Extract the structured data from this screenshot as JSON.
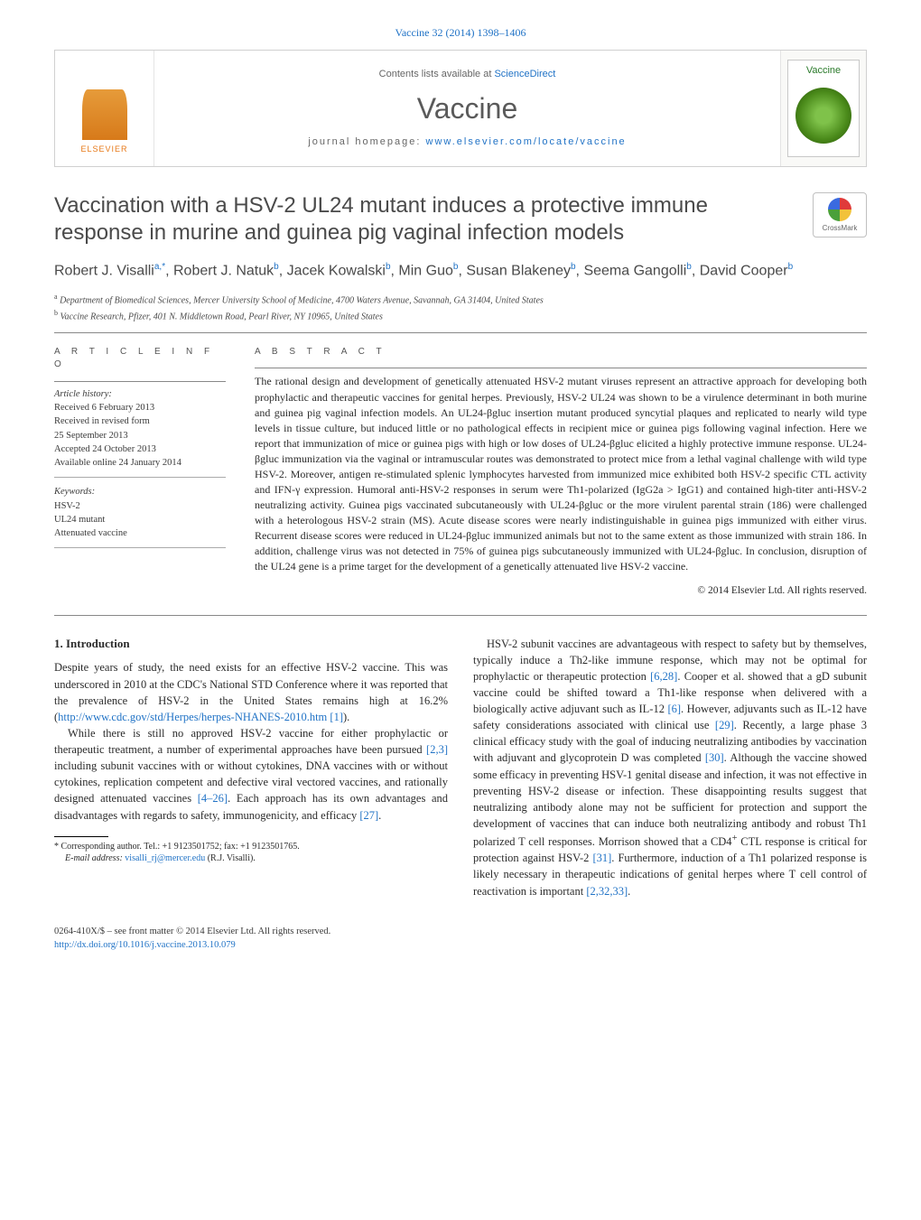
{
  "top_ref": "Vaccine 32 (2014) 1398–1406",
  "banner": {
    "contents_label": "Contents lists available at ",
    "contents_link": "ScienceDirect",
    "journal_name": "Vaccine",
    "homepage_label": "journal homepage: ",
    "homepage_url": "www.elsevier.com/locate/vaccine",
    "publisher_label": "ELSEVIER",
    "cover_title": "Vaccine"
  },
  "crossmark_label": "CrossMark",
  "title": "Vaccination with a HSV-2 UL24 mutant induces a protective immune response in murine and guinea pig vaginal infection models",
  "authors_html": "Robert J. Visalli<sup>a,*</sup>, Robert J. Natuk<sup>b</sup>, Jacek Kowalski<sup>b</sup>, Min Guo<sup>b</sup>, Susan Blakeney<sup>b</sup>, Seema Gangolli<sup>b</sup>, David Cooper<sup>b</sup>",
  "affiliations": {
    "a": "Department of Biomedical Sciences, Mercer University School of Medicine, 4700 Waters Avenue, Savannah, GA 31404, United States",
    "b": "Vaccine Research, Pfizer, 401 N. Middletown Road, Pearl River, NY 10965, United States"
  },
  "article_info": {
    "head": "A R T I C L E   I N F O",
    "history_label": "Article history:",
    "received": "Received 6 February 2013",
    "revised1": "Received in revised form",
    "revised2": "25 September 2013",
    "accepted": "Accepted 24 October 2013",
    "online": "Available online 24 January 2014",
    "keywords_label": "Keywords:",
    "kw1": "HSV-2",
    "kw2": "UL24 mutant",
    "kw3": "Attenuated vaccine"
  },
  "abstract": {
    "head": "A B S T R A C T",
    "text": "The rational design and development of genetically attenuated HSV-2 mutant viruses represent an attractive approach for developing both prophylactic and therapeutic vaccines for genital herpes. Previously, HSV-2 UL24 was shown to be a virulence determinant in both murine and guinea pig vaginal infection models. An UL24-βgluc insertion mutant produced syncytial plaques and replicated to nearly wild type levels in tissue culture, but induced little or no pathological effects in recipient mice or guinea pigs following vaginal infection. Here we report that immunization of mice or guinea pigs with high or low doses of UL24-βgluc elicited a highly protective immune response. UL24-βgluc immunization via the vaginal or intramuscular routes was demonstrated to protect mice from a lethal vaginal challenge with wild type HSV-2. Moreover, antigen re-stimulated splenic lymphocytes harvested from immunized mice exhibited both HSV-2 specific CTL activity and IFN-γ expression. Humoral anti-HSV-2 responses in serum were Th1-polarized (IgG2a > IgG1) and contained high-titer anti-HSV-2 neutralizing activity. Guinea pigs vaccinated subcutaneously with UL24-βgluc or the more virulent parental strain (186) were challenged with a heterologous HSV-2 strain (MS). Acute disease scores were nearly indistinguishable in guinea pigs immunized with either virus. Recurrent disease scores were reduced in UL24-βgluc immunized animals but not to the same extent as those immunized with strain 186. In addition, challenge virus was not detected in 75% of guinea pigs subcutaneously immunized with UL24-βgluc. In conclusion, disruption of the UL24 gene is a prime target for the development of a genetically attenuated live HSV-2 vaccine.",
    "copyright": "© 2014 Elsevier Ltd. All rights reserved."
  },
  "body": {
    "heading": "1. Introduction",
    "p1_a": "Despite years of study, the need exists for an effective HSV-2 vaccine. This was underscored in 2010 at the CDC's National STD Conference where it was reported that the prevalence of HSV-2 in the United States remains high at 16.2% (",
    "p1_link": "http://www.cdc.gov/std/Herpes/herpes-NHANES-2010.htm",
    "p1_cite": " [1]",
    "p1_b": ").",
    "p2": "While there is still no approved HSV-2 vaccine for either prophylactic or therapeutic treatment, a number of experimental approaches have been pursued [2,3] including subunit vaccines with or without cytokines, DNA vaccines with or without cytokines, replication competent and defective viral vectored vaccines, and rationally designed attenuated vaccines [4–26]. Each approach has its own advantages and disadvantages with regards to safety, immunogenicity, and efficacy [27].",
    "p3": "HSV-2 subunit vaccines are advantageous with respect to safety but by themselves, typically induce a Th2-like immune response, which may not be optimal for prophylactic or therapeutic protection [6,28]. Cooper et al. showed that a gD subunit vaccine could be shifted toward a Th1-like response when delivered with a biologically active adjuvant such as IL-12 [6]. However, adjuvants such as IL-12 have safety considerations associated with clinical use [29]. Recently, a large phase 3 clinical efficacy study with the goal of inducing neutralizing antibodies by vaccination with adjuvant and glycoprotein D was completed [30]. Although the vaccine showed some efficacy in preventing HSV-1 genital disease and infection, it was not effective in preventing HSV-2 disease or infection. These disappointing results suggest that neutralizing antibody alone may not be sufficient for protection and support the development of vaccines that can induce both neutralizing antibody and robust Th1 polarized T cell responses. Morrison showed that a CD4+ CTL response is critical for protection against HSV-2 [31]. Furthermore, induction of a Th1 polarized response is likely necessary in therapeutic indications of genital herpes where T cell control of reactivation is important [2,32,33]."
  },
  "footnote": {
    "corr_a": "* Corresponding author. Tel.: +1 9123501752; fax: +1 9123501765.",
    "email_label": "E-mail address: ",
    "email": "visalli_rj@mercer.edu",
    "email_tail": " (R.J. Visalli)."
  },
  "footer": {
    "line1": "0264-410X/$ – see front matter © 2014 Elsevier Ltd. All rights reserved.",
    "doi": "http://dx.doi.org/10.1016/j.vaccine.2013.10.079"
  },
  "colors": {
    "link": "#2173c6",
    "text": "#2b2b2b",
    "heading_gray": "#4a4a4a",
    "orange": "#e77817"
  }
}
